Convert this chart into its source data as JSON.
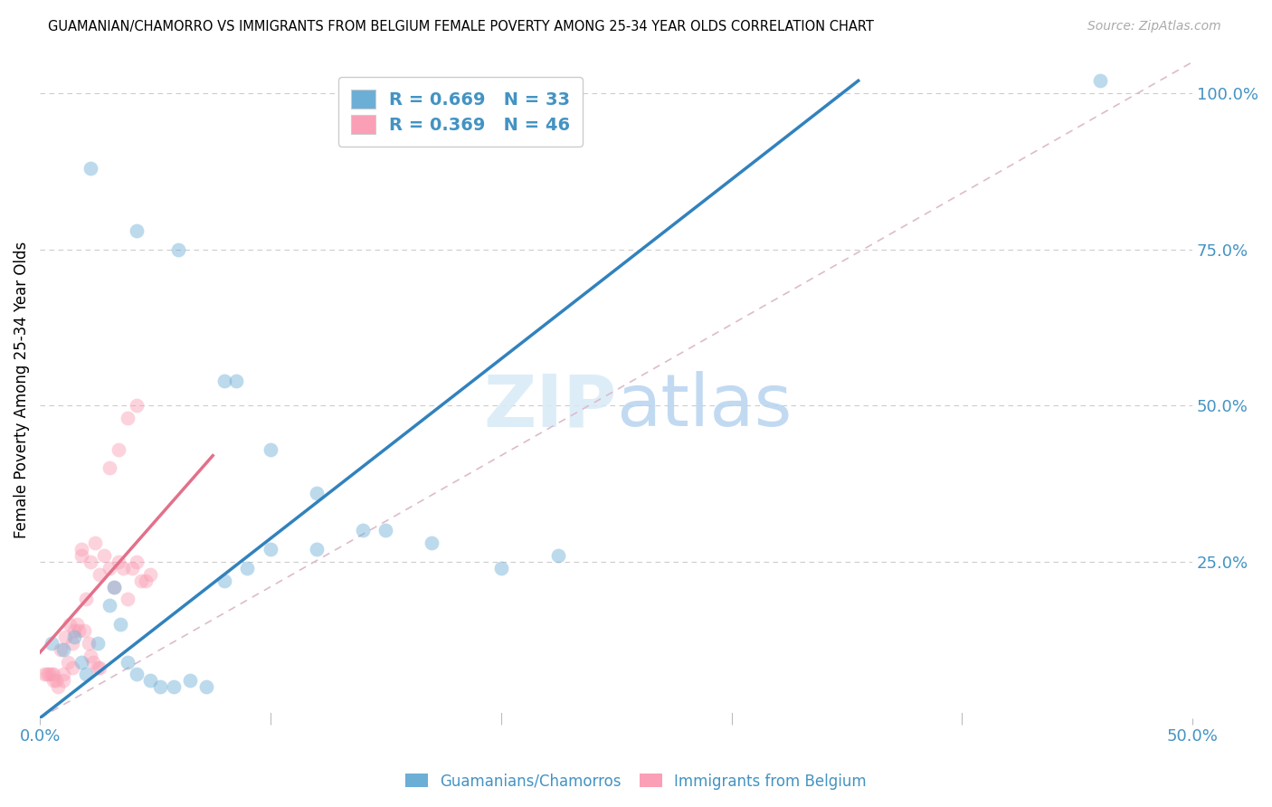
{
  "title": "GUAMANIAN/CHAMORRO VS IMMIGRANTS FROM BELGIUM FEMALE POVERTY AMONG 25-34 YEAR OLDS CORRELATION CHART",
  "source": "Source: ZipAtlas.com",
  "ylabel": "Female Poverty Among 25-34 Year Olds",
  "xlim": [
    0.0,
    0.5
  ],
  "ylim": [
    0.0,
    1.05
  ],
  "blue_color": "#6baed6",
  "pink_color": "#fa9fb5",
  "blue_line_color": "#3182bd",
  "pink_line_color": "#e3708a",
  "diag_color": "#ddbbcc",
  "text_color": "#4393c3",
  "watermark": "ZIPatlas",
  "blue_scatter_x": [
    0.022,
    0.042,
    0.06,
    0.08,
    0.1,
    0.12,
    0.15,
    0.17,
    0.2,
    0.225,
    0.005,
    0.01,
    0.015,
    0.018,
    0.02,
    0.025,
    0.03,
    0.032,
    0.035,
    0.038,
    0.042,
    0.048,
    0.052,
    0.058,
    0.065,
    0.072,
    0.08,
    0.09,
    0.1,
    0.12,
    0.14,
    0.46,
    0.085
  ],
  "blue_scatter_y": [
    0.88,
    0.78,
    0.75,
    0.54,
    0.43,
    0.36,
    0.3,
    0.28,
    0.24,
    0.26,
    0.12,
    0.11,
    0.13,
    0.09,
    0.07,
    0.12,
    0.18,
    0.21,
    0.15,
    0.09,
    0.07,
    0.06,
    0.05,
    0.05,
    0.06,
    0.05,
    0.22,
    0.24,
    0.27,
    0.27,
    0.3,
    1.02,
    0.54
  ],
  "pink_scatter_x": [
    0.004,
    0.006,
    0.008,
    0.01,
    0.012,
    0.014,
    0.016,
    0.018,
    0.02,
    0.022,
    0.024,
    0.026,
    0.028,
    0.03,
    0.032,
    0.034,
    0.036,
    0.038,
    0.04,
    0.042,
    0.044,
    0.046,
    0.048,
    0.003,
    0.005,
    0.007,
    0.009,
    0.011,
    0.013,
    0.015,
    0.017,
    0.019,
    0.021,
    0.023,
    0.025,
    0.002,
    0.006,
    0.01,
    0.014,
    0.018,
    0.022,
    0.026,
    0.03,
    0.034,
    0.038,
    0.042
  ],
  "pink_scatter_y": [
    0.07,
    0.06,
    0.05,
    0.06,
    0.09,
    0.12,
    0.15,
    0.26,
    0.19,
    0.25,
    0.28,
    0.23,
    0.26,
    0.24,
    0.21,
    0.25,
    0.24,
    0.19,
    0.24,
    0.25,
    0.22,
    0.22,
    0.23,
    0.07,
    0.07,
    0.06,
    0.11,
    0.13,
    0.15,
    0.14,
    0.14,
    0.14,
    0.12,
    0.09,
    0.08,
    0.07,
    0.07,
    0.07,
    0.08,
    0.27,
    0.1,
    0.08,
    0.4,
    0.43,
    0.48,
    0.5
  ],
  "marker_size": 130,
  "marker_alpha": 0.45,
  "background_color": "#ffffff",
  "grid_color": "#cccccc",
  "blue_line_x": [
    0.0,
    0.355
  ],
  "blue_line_y": [
    0.0,
    1.02
  ],
  "pink_line_x": [
    0.0,
    0.075
  ],
  "pink_line_y": [
    0.105,
    0.42
  ]
}
